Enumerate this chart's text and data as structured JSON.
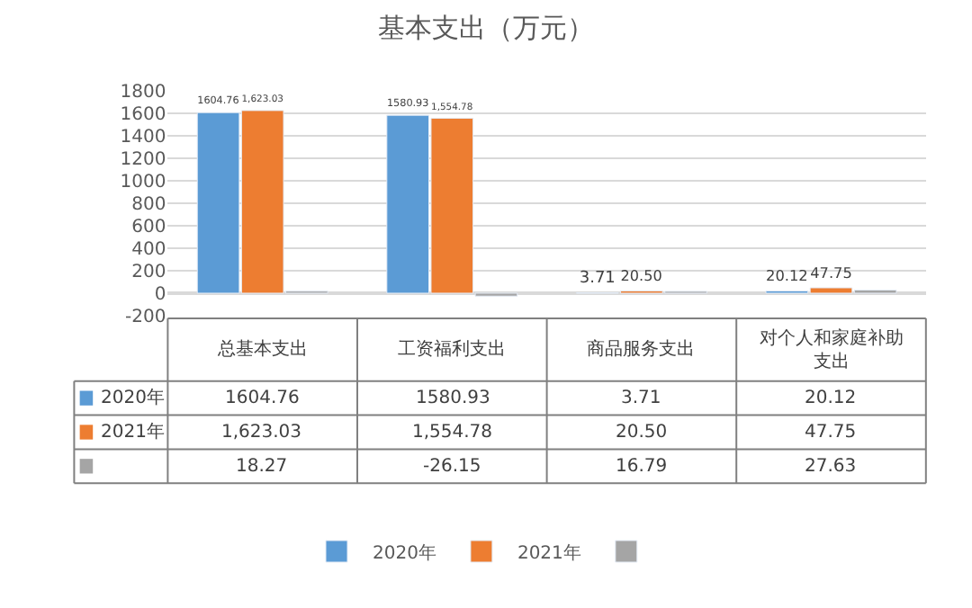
{
  "chart_data": {
    "type": "bar",
    "title": "基本支出（万元）",
    "categories": [
      "总基本支出",
      "工资福利支出",
      "商品服务支出",
      "对个人和家庭补助支出"
    ],
    "series": [
      {
        "name": "2020年",
        "color": "#5b9bd5",
        "values": [
          1604.76,
          1580.93,
          3.71,
          20.12
        ],
        "value_labels": [
          "1604.76",
          "1580.93",
          "3.71",
          "20.12"
        ]
      },
      {
        "name": "2021年",
        "color": "#ed7d31",
        "values": [
          1623.03,
          1554.78,
          20.5,
          47.75
        ],
        "value_labels": [
          "1,623.03",
          "1,554.78",
          "20.50",
          "47.75"
        ]
      },
      {
        "color": "#a5a5a5",
        "values": [
          18.27,
          -26.15,
          16.79,
          27.63
        ],
        "value_labels": [
          "18.27",
          "-26.15",
          "16.79",
          "27.63"
        ]
      }
    ],
    "ylim": [
      -200,
      1800
    ],
    "yticks": [
      -200,
      0,
      200,
      400,
      600,
      800,
      1000,
      1200,
      1400,
      1600,
      1800
    ],
    "grid": "y",
    "legend": "bottom"
  }
}
